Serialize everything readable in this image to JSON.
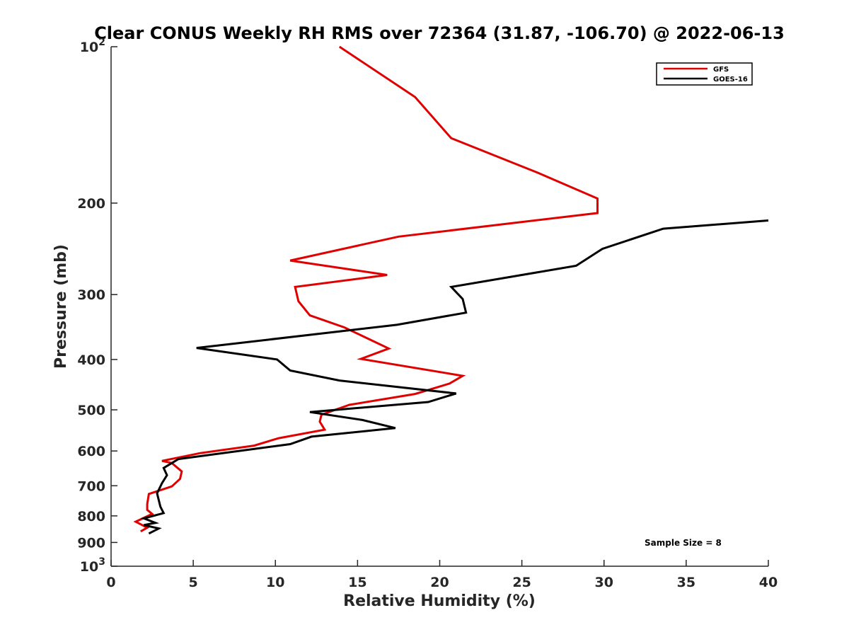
{
  "chart_data": {
    "type": "line",
    "title": "Clear CONUS Weekly RH RMS over 72364 (31.87, -106.70) @ 2022-06-13",
    "xlabel": "Relative Humidity (%)",
    "ylabel": "Pressure (mb)",
    "xlim": [
      0,
      40
    ],
    "ylim": [
      1000,
      100
    ],
    "yscale": "log",
    "y_reversed": true,
    "x_ticks": [
      "0",
      "5",
      "10",
      "15",
      "20",
      "25",
      "30",
      "35",
      "40"
    ],
    "y_ticks": [
      {
        "value": 100,
        "base": "10",
        "exp": "2",
        "text": ""
      },
      {
        "value": 200,
        "base": "",
        "exp": "",
        "text": "200"
      },
      {
        "value": 300,
        "base": "",
        "exp": "",
        "text": "300"
      },
      {
        "value": 400,
        "base": "",
        "exp": "",
        "text": "400"
      },
      {
        "value": 500,
        "base": "",
        "exp": "",
        "text": "500"
      },
      {
        "value": 600,
        "base": "",
        "exp": "",
        "text": "600"
      },
      {
        "value": 700,
        "base": "",
        "exp": "",
        "text": "700"
      },
      {
        "value": 800,
        "base": "",
        "exp": "",
        "text": "800"
      },
      {
        "value": 900,
        "base": "",
        "exp": "",
        "text": "900"
      },
      {
        "value": 1000,
        "base": "10",
        "exp": "3",
        "text": ""
      }
    ],
    "grid": false,
    "legend": "top-right",
    "annotation": "Sample Size = 8",
    "series": [
      {
        "name": "GFS",
        "color": "#e00000",
        "points": [
          [
            13.9,
            100
          ],
          [
            18.5,
            125
          ],
          [
            20.7,
            150
          ],
          [
            26.0,
            175
          ],
          [
            29.6,
            196
          ],
          [
            29.6,
            209
          ],
          [
            17.5,
            232
          ],
          [
            10.9,
            258
          ],
          [
            16.8,
            275
          ],
          [
            11.2,
            290
          ],
          [
            11.4,
            309
          ],
          [
            12.1,
            329
          ],
          [
            14.2,
            347
          ],
          [
            16.9,
            381
          ],
          [
            15.2,
            399
          ],
          [
            21.4,
            430
          ],
          [
            20.6,
            445
          ],
          [
            18.5,
            466
          ],
          [
            14.5,
            489
          ],
          [
            12.8,
            511
          ],
          [
            12.7,
            527
          ],
          [
            13.0,
            546
          ],
          [
            10.2,
            567
          ],
          [
            8.7,
            586
          ],
          [
            5.4,
            606
          ],
          [
            3.1,
            627
          ],
          [
            3.7,
            633
          ],
          [
            4.3,
            657
          ],
          [
            4.2,
            679
          ],
          [
            3.7,
            702
          ],
          [
            2.3,
            726
          ],
          [
            2.2,
            759
          ],
          [
            2.2,
            779
          ],
          [
            2.5,
            793
          ],
          [
            1.5,
            821
          ],
          [
            2.2,
            843
          ],
          [
            1.8,
            857
          ]
        ]
      },
      {
        "name": "GOES-16",
        "color": "#000000",
        "points": [
          [
            40.0,
            216
          ],
          [
            33.6,
            224
          ],
          [
            29.9,
            245
          ],
          [
            28.3,
            264
          ],
          [
            20.7,
            290
          ],
          [
            21.4,
            306
          ],
          [
            21.6,
            325
          ],
          [
            17.4,
            343
          ],
          [
            5.2,
            380
          ],
          [
            10.1,
            400
          ],
          [
            10.9,
            420
          ],
          [
            13.9,
            439
          ],
          [
            21.0,
            465
          ],
          [
            19.3,
            483
          ],
          [
            12.1,
            505
          ],
          [
            15.3,
            523
          ],
          [
            17.3,
            542
          ],
          [
            12.2,
            563
          ],
          [
            10.9,
            582
          ],
          [
            4.1,
            622
          ],
          [
            3.2,
            647
          ],
          [
            3.4,
            668
          ],
          [
            3.1,
            692
          ],
          [
            2.8,
            724
          ],
          [
            3.0,
            768
          ],
          [
            3.2,
            790
          ],
          [
            2.0,
            809
          ],
          [
            2.7,
            825
          ],
          [
            2.0,
            833
          ],
          [
            2.9,
            846
          ],
          [
            2.3,
            865
          ]
        ]
      }
    ]
  }
}
